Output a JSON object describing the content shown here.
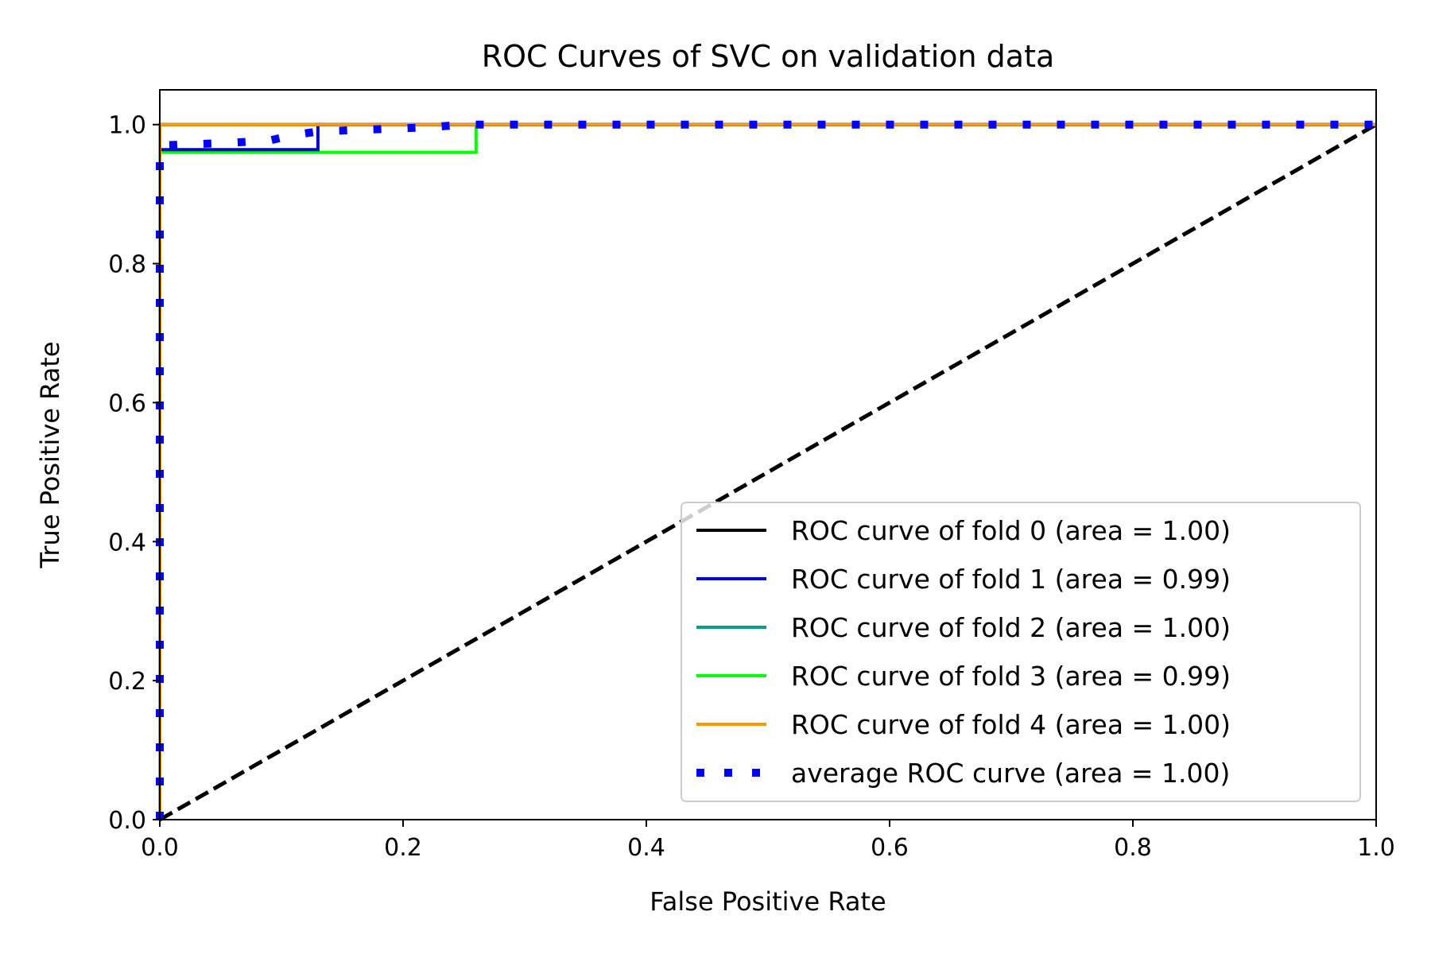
{
  "chart_data": {
    "type": "line",
    "title": "ROC Curves of SVC on validation data",
    "xlabel": "False Positive Rate",
    "ylabel": "True Positive Rate",
    "xlim": [
      0.0,
      1.0
    ],
    "ylim": [
      0.0,
      1.05
    ],
    "xticks": [
      "0.0",
      "0.2",
      "0.4",
      "0.6",
      "0.8",
      "1.0"
    ],
    "yticks": [
      "0.0",
      "0.2",
      "0.4",
      "0.6",
      "0.8",
      "1.0"
    ],
    "grid": false,
    "legend_position": "lower-right",
    "series": [
      {
        "name": "ROC curve of fold 0 (area = 1.00)",
        "color": "#000000",
        "style": "solid",
        "x": [
          0.0,
          0.0,
          1.0
        ],
        "y": [
          0.0,
          1.0,
          1.0
        ]
      },
      {
        "name": "ROC curve of fold 1 (area = 0.99)",
        "color": "#0000cc",
        "style": "solid",
        "x": [
          0.0,
          0.0,
          0.13,
          0.13,
          1.0
        ],
        "y": [
          0.0,
          0.964,
          0.964,
          1.0,
          1.0
        ]
      },
      {
        "name": "ROC curve of fold 2 (area = 1.00)",
        "color": "#00a08a",
        "style": "solid",
        "x": [
          0.0,
          0.0,
          1.0
        ],
        "y": [
          0.0,
          1.0,
          1.0
        ]
      },
      {
        "name": "ROC curve of fold 3 (area = 0.99)",
        "color": "#00ff00",
        "style": "solid",
        "x": [
          0.0,
          0.0,
          0.26,
          0.26,
          1.0
        ],
        "y": [
          0.0,
          0.96,
          0.96,
          1.0,
          1.0
        ]
      },
      {
        "name": "ROC curve of fold 4 (area = 1.00)",
        "color": "#ff9900",
        "style": "solid",
        "x": [
          0.0,
          0.0,
          1.0
        ],
        "y": [
          0.0,
          1.0,
          1.0
        ]
      },
      {
        "name": "average ROC curve (area = 1.00)",
        "color": "#0000ff",
        "style": "dotted",
        "x": [
          0.0,
          0.0,
          0.03,
          0.06,
          0.09,
          0.11,
          0.13,
          0.16,
          0.19,
          0.22,
          0.25,
          0.27,
          1.0
        ],
        "y": [
          0.0,
          0.97,
          0.972,
          0.974,
          0.977,
          0.985,
          0.99,
          0.992,
          0.994,
          0.996,
          1.0,
          1.0,
          1.0
        ]
      }
    ],
    "diagonal": {
      "x": [
        0.0,
        1.0
      ],
      "y": [
        0.0,
        1.0
      ],
      "color": "#000000",
      "style": "dashed"
    }
  }
}
